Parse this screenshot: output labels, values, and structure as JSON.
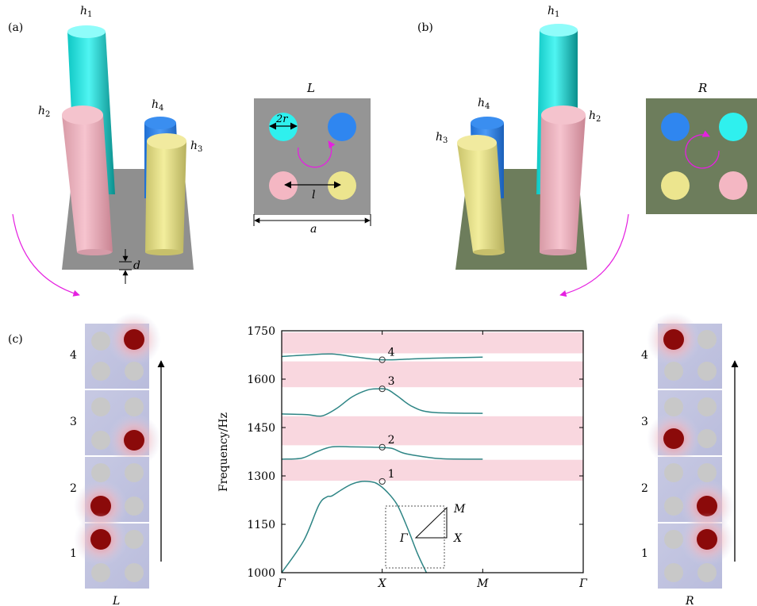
{
  "panels": {
    "a": "(a)",
    "b": "(b)",
    "c": "(c)"
  },
  "pillar_labels": {
    "h1": "h",
    "h1_sub": "1",
    "h2": "h",
    "h2_sub": "2",
    "h3": "h",
    "h3_sub": "3",
    "h4": "h",
    "h4_sub": "4",
    "d": "d"
  },
  "top_view_left": {
    "title": "L",
    "radius_label": "2r",
    "spacing_label": "l",
    "lattice_label": "a"
  },
  "top_view_right": {
    "title": "R"
  },
  "field_strips": {
    "left_caption": "L",
    "right_caption": "R",
    "mode_numbers": [
      "4",
      "3",
      "2",
      "1"
    ]
  },
  "colors": {
    "cyan": "#2ff0ee",
    "pink": "#f4b7c3",
    "yellow": "#ece58e",
    "blue": "#2f86f0",
    "plate_gray": "#8e8e8e",
    "plate_green": "#6d7d5c",
    "arrow_magenta": "#e520e0",
    "bandgap": "#f9d7df",
    "band_line": "#2e8585",
    "field_red": "#8b0a0a"
  },
  "chart_data": {
    "type": "line",
    "ylabel": "Frequency/Hz",
    "xlabel": "",
    "x_ticks": [
      "Γ",
      "X",
      "M",
      "Γ"
    ],
    "y_ticks": [
      1000,
      1150,
      1300,
      1450,
      1600,
      1750
    ],
    "ylim": [
      1000,
      1750
    ],
    "grid": false,
    "band_gaps": [
      [
        1285,
        1350
      ],
      [
        1395,
        1485
      ],
      [
        1575,
        1655
      ],
      [
        1680,
        1745
      ]
    ],
    "series": [
      {
        "values": [
          [
            0.0,
            999
          ],
          [
            0.22,
            1100
          ],
          [
            0.37,
            1210
          ],
          [
            0.45,
            1235
          ],
          [
            0.5,
            1238
          ],
          [
            0.6,
            1258
          ],
          [
            0.7,
            1275
          ],
          [
            0.8,
            1283
          ],
          [
            0.88,
            1282
          ],
          [
            0.95,
            1276
          ],
          [
            1.05,
            1250
          ],
          [
            1.15,
            1210
          ],
          [
            1.25,
            1140
          ],
          [
            1.35,
            1060
          ],
          [
            1.44,
            999
          ]
        ]
      },
      {
        "values": [
          [
            0.0,
            1352
          ],
          [
            0.2,
            1355
          ],
          [
            0.35,
            1375
          ],
          [
            0.5,
            1390
          ],
          [
            0.7,
            1390
          ],
          [
            0.9,
            1389
          ],
          [
            1.0,
            1388
          ],
          [
            1.1,
            1385
          ],
          [
            1.22,
            1370
          ],
          [
            1.4,
            1360
          ],
          [
            1.6,
            1353
          ],
          [
            2.0,
            1352
          ]
        ]
      },
      {
        "values": [
          [
            0.0,
            1492
          ],
          [
            0.25,
            1490
          ],
          [
            0.4,
            1486
          ],
          [
            0.55,
            1510
          ],
          [
            0.7,
            1545
          ],
          [
            0.85,
            1566
          ],
          [
            0.95,
            1570
          ],
          [
            1.05,
            1568
          ],
          [
            1.15,
            1548
          ],
          [
            1.3,
            1515
          ],
          [
            1.5,
            1497
          ],
          [
            2.0,
            1494
          ]
        ]
      },
      {
        "values": [
          [
            0.0,
            1670
          ],
          [
            0.25,
            1675
          ],
          [
            0.5,
            1678
          ],
          [
            0.75,
            1668
          ],
          [
            1.0,
            1660
          ],
          [
            1.25,
            1662
          ],
          [
            1.5,
            1665
          ],
          [
            2.0,
            1668
          ]
        ]
      }
    ],
    "markers": [
      {
        "x": 1,
        "y": 1283,
        "label": "1"
      },
      {
        "x": 1,
        "y": 1389,
        "label": "2"
      },
      {
        "x": 1,
        "y": 1570,
        "label": "3"
      },
      {
        "x": 1,
        "y": 1660,
        "label": "4"
      }
    ],
    "inset": {
      "vertices": [
        "Γ",
        "X",
        "M"
      ]
    }
  }
}
